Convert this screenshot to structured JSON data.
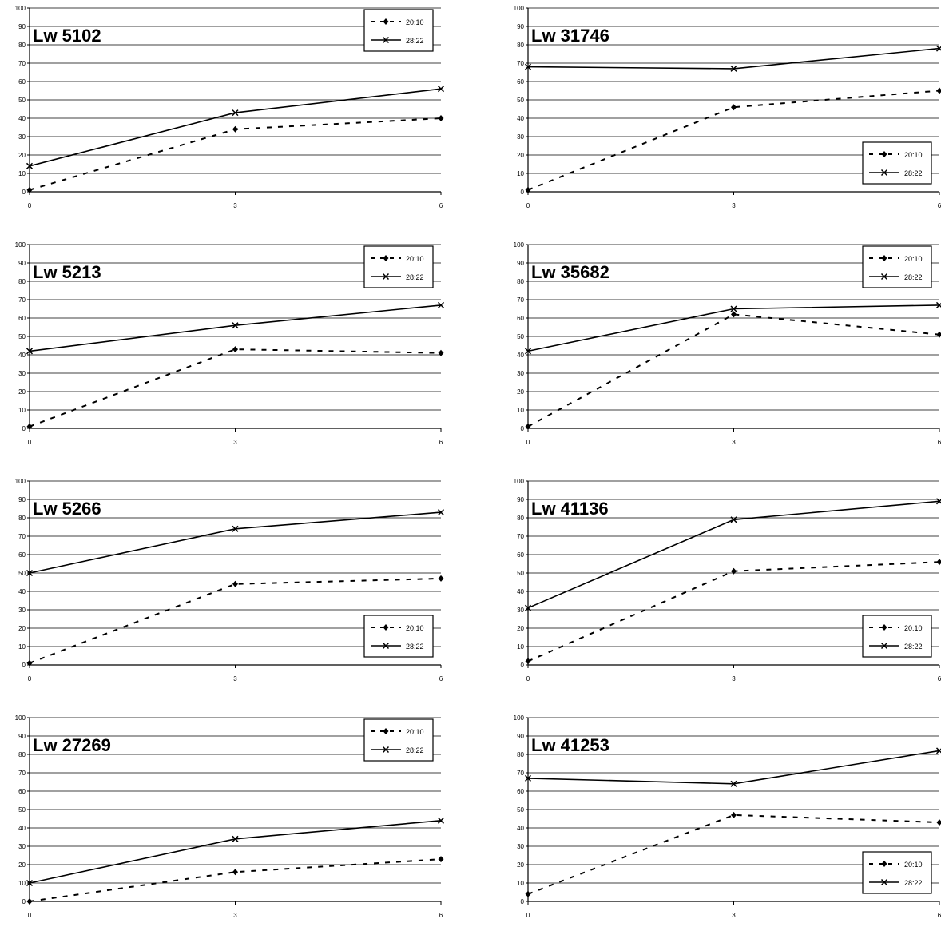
{
  "legend_labels": [
    "20:10",
    "28:22"
  ],
  "chart_data": [
    {
      "type": "line",
      "title": "Lw 5102",
      "x": [
        0,
        3,
        6
      ],
      "xticks": [
        "0",
        "3",
        "6"
      ],
      "ylim": [
        0,
        100
      ],
      "yticks": [
        "0",
        "10",
        "20",
        "30",
        "40",
        "50",
        "60",
        "70",
        "80",
        "90",
        "100"
      ],
      "grid": true,
      "legend_position": "top-right",
      "series": [
        {
          "name": "20:10",
          "style": "dashed",
          "marker": "diamond",
          "values": [
            1,
            34,
            40
          ]
        },
        {
          "name": "28:22",
          "style": "solid",
          "marker": "x",
          "values": [
            14,
            43,
            56
          ]
        }
      ]
    },
    {
      "type": "line",
      "title": "Lw 31746",
      "x": [
        0,
        3,
        6
      ],
      "xticks": [
        "0",
        "3",
        "6"
      ],
      "ylim": [
        0,
        100
      ],
      "yticks": [
        "0",
        "10",
        "20",
        "30",
        "40",
        "50",
        "60",
        "70",
        "80",
        "90",
        "100"
      ],
      "grid": true,
      "legend_position": "bottom-right",
      "series": [
        {
          "name": "20:10",
          "style": "dashed",
          "marker": "diamond",
          "values": [
            1,
            46,
            55
          ]
        },
        {
          "name": "28:22",
          "style": "solid",
          "marker": "x",
          "values": [
            68,
            67,
            78
          ]
        }
      ]
    },
    {
      "type": "line",
      "title": "Lw 5213",
      "x": [
        0,
        3,
        6
      ],
      "xticks": [
        "0",
        "3",
        "6"
      ],
      "ylim": [
        0,
        100
      ],
      "yticks": [
        "0",
        "10",
        "20",
        "30",
        "40",
        "50",
        "60",
        "70",
        "80",
        "90",
        "100"
      ],
      "grid": true,
      "legend_position": "top-right",
      "series": [
        {
          "name": "20:10",
          "style": "dashed",
          "marker": "diamond",
          "values": [
            1,
            43,
            41
          ]
        },
        {
          "name": "28:22",
          "style": "solid",
          "marker": "x",
          "values": [
            42,
            56,
            67
          ]
        }
      ]
    },
    {
      "type": "line",
      "title": "Lw 35682",
      "x": [
        0,
        3,
        6
      ],
      "xticks": [
        "0",
        "3",
        "6"
      ],
      "ylim": [
        0,
        100
      ],
      "yticks": [
        "0",
        "10",
        "20",
        "30",
        "40",
        "50",
        "60",
        "70",
        "80",
        "90",
        "100"
      ],
      "grid": true,
      "legend_position": "top-right",
      "series": [
        {
          "name": "20:10",
          "style": "dashed",
          "marker": "diamond",
          "values": [
            1,
            62,
            51
          ]
        },
        {
          "name": "28:22",
          "style": "solid",
          "marker": "x",
          "values": [
            42,
            65,
            67
          ]
        }
      ]
    },
    {
      "type": "line",
      "title": "Lw 5266",
      "x": [
        0,
        3,
        6
      ],
      "xticks": [
        "0",
        "3",
        "6"
      ],
      "ylim": [
        0,
        100
      ],
      "yticks": [
        "0",
        "10",
        "20",
        "30",
        "40",
        "50",
        "60",
        "70",
        "80",
        "90",
        "100"
      ],
      "grid": true,
      "legend_position": "bottom-right",
      "series": [
        {
          "name": "20:10",
          "style": "dashed",
          "marker": "diamond",
          "values": [
            1,
            44,
            47
          ]
        },
        {
          "name": "28:22",
          "style": "solid",
          "marker": "x",
          "values": [
            50,
            74,
            83
          ]
        }
      ]
    },
    {
      "type": "line",
      "title": "Lw 41136",
      "x": [
        0,
        3,
        6
      ],
      "xticks": [
        "0",
        "3",
        "6"
      ],
      "ylim": [
        0,
        100
      ],
      "yticks": [
        "0",
        "10",
        "20",
        "30",
        "40",
        "50",
        "60",
        "70",
        "80",
        "90",
        "100"
      ],
      "grid": true,
      "legend_position": "bottom-right",
      "series": [
        {
          "name": "20:10",
          "style": "dashed",
          "marker": "diamond",
          "values": [
            2,
            51,
            56
          ]
        },
        {
          "name": "28:22",
          "style": "solid",
          "marker": "x",
          "values": [
            31,
            79,
            89
          ]
        }
      ]
    },
    {
      "type": "line",
      "title": "Lw 27269",
      "x": [
        0,
        3,
        6
      ],
      "xticks": [
        "0",
        "3",
        "6"
      ],
      "ylim": [
        0,
        100
      ],
      "yticks": [
        "0",
        "10",
        "20",
        "30",
        "40",
        "50",
        "60",
        "70",
        "80",
        "90",
        "100"
      ],
      "grid": true,
      "legend_position": "top-right",
      "series": [
        {
          "name": "20:10",
          "style": "dashed",
          "marker": "diamond",
          "values": [
            0,
            16,
            23
          ]
        },
        {
          "name": "28:22",
          "style": "solid",
          "marker": "x",
          "values": [
            10,
            34,
            44
          ]
        }
      ]
    },
    {
      "type": "line",
      "title": "Lw 41253",
      "x": [
        0,
        3,
        6
      ],
      "xticks": [
        "0",
        "3",
        "6"
      ],
      "ylim": [
        0,
        100
      ],
      "yticks": [
        "0",
        "10",
        "20",
        "30",
        "40",
        "50",
        "60",
        "70",
        "80",
        "90",
        "100"
      ],
      "grid": true,
      "legend_position": "bottom-right",
      "series": [
        {
          "name": "20:10",
          "style": "dashed",
          "marker": "diamond",
          "values": [
            4,
            47,
            43
          ]
        },
        {
          "name": "28:22",
          "style": "solid",
          "marker": "x",
          "values": [
            67,
            64,
            82
          ]
        }
      ]
    }
  ]
}
